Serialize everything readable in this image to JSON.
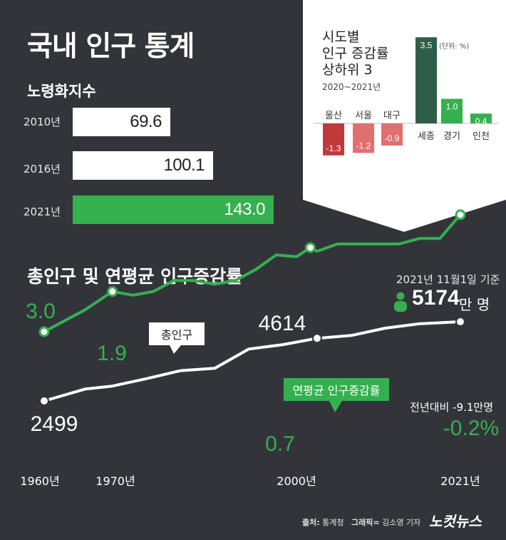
{
  "title": "국내 인구 통계",
  "aging": {
    "title": "노령화지수",
    "items": [
      {
        "year": "2010년",
        "value": 69.6,
        "label": "69.6"
      },
      {
        "year": "2016년",
        "value": 100.1,
        "label": "100.1"
      },
      {
        "year": "2021년",
        "value": 143.0,
        "label": "143.0"
      }
    ]
  },
  "region": {
    "title_lines": [
      "시도별",
      "인구 증감률",
      "상하위 3"
    ],
    "period": "2020~2021년",
    "unit": "(단위: %)"
  },
  "main": {
    "title": "총인구 및 연평균 인구증감률",
    "basis": "2021년 11월1일 기준",
    "population_now": "5174",
    "population_unit": "만 명",
    "total_pop_label": "총인구",
    "growth_label": "연평균 인구증감률",
    "yoy_note": "전년대비 -9.1만명"
  },
  "footer": {
    "source_label": "출처:",
    "source": "통계청",
    "graphic_label": "그래픽=",
    "graphic": "김소영 기자",
    "brand": "노컷뉴스"
  },
  "colors": {
    "background": "#33343a",
    "green": "#35b04f",
    "red_dark": "#c0393b",
    "red_light": "#e07070",
    "green_dark": "#2f5e48",
    "panel": "#ffffff"
  },
  "chart_data": [
    {
      "type": "bar",
      "title": "시도별 인구 증감률 상하위 3",
      "categories": [
        "울산",
        "서울",
        "대구",
        "세종",
        "경기",
        "인천"
      ],
      "values": [
        -1.3,
        -1.2,
        -0.9,
        3.5,
        1.0,
        0.4
      ],
      "value_labels": [
        "-1.3",
        "-1.2",
        "-0.9",
        "3.5",
        "1.0",
        "0.4"
      ],
      "ylim": [
        -1.3,
        3.5
      ]
    },
    {
      "type": "line",
      "title": "총인구 및 연평균 인구증감률",
      "x_ticks": [
        "1960년",
        "1970년",
        "2000년",
        "2021년"
      ],
      "series": [
        {
          "name": "총인구",
          "unit": "만 명",
          "x": [
            1960,
            1966,
            1970,
            1975,
            1980,
            1985,
            1990,
            1995,
            2000,
            2005,
            2010,
            2015,
            2021
          ],
          "y": [
            2499,
            2900,
            3000,
            3250,
            3520,
            3600,
            4250,
            4400,
            4614,
            4710,
            4956,
            5105,
            5174
          ],
          "labels": {
            "0": "2499",
            "8": "4614"
          }
        },
        {
          "name": "연평균 인구증감률",
          "unit": "%",
          "x": [
            1960,
            1966,
            1970,
            1973,
            1976,
            1979,
            1982,
            1985,
            1988,
            1991,
            1994,
            1997,
            1999,
            2000,
            2003,
            2006,
            2009,
            2012,
            2015,
            2018,
            2021
          ],
          "y": [
            3.0,
            2.4,
            1.9,
            2.0,
            1.9,
            1.6,
            1.6,
            1.7,
            1.6,
            1.3,
            0.9,
            0.95,
            0.7,
            0.8,
            0.6,
            0.6,
            0.6,
            0.6,
            0.45,
            0.45,
            -0.2
          ],
          "labels": {
            "0": "3.0",
            "2": "1.9",
            "12": "0.7",
            "20": "-0.2%"
          }
        }
      ]
    }
  ]
}
